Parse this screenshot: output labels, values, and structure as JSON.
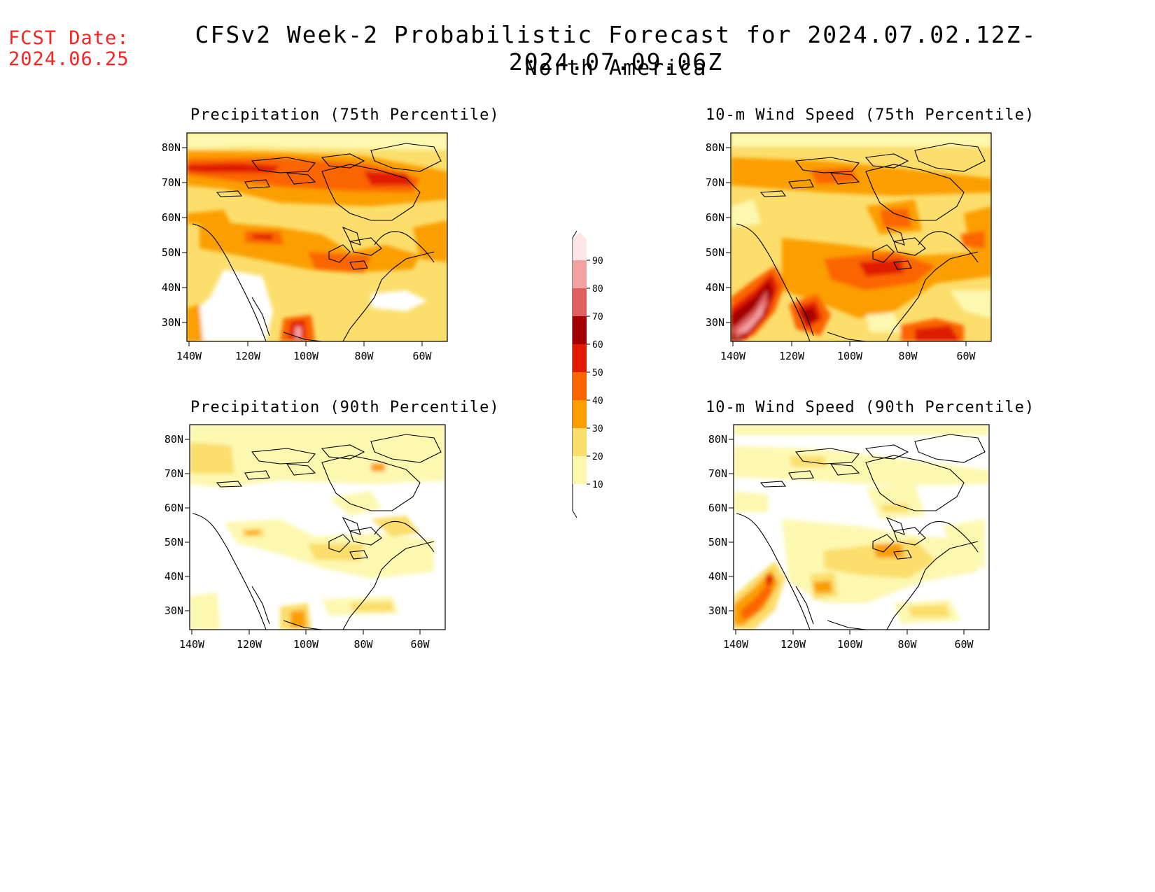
{
  "header": {
    "fcst_label": "FCST Date:",
    "fcst_date": "2024.06.25",
    "title": "CFSv2 Week-2 Probabilistic Forecast for 2024.07.02.12Z-2024.07.09.06Z",
    "region": "North America"
  },
  "axes": {
    "lat_ticks": [
      "80N",
      "70N",
      "60N",
      "50N",
      "40N",
      "30N"
    ],
    "lon_ticks": [
      "140W",
      "120W",
      "100W",
      "80W",
      "60W"
    ]
  },
  "panels": [
    {
      "title": "Precipitation (75th Percentile)"
    },
    {
      "title": "10-m Wind Speed (75th Percentile)"
    },
    {
      "title": "Precipitation (90th Percentile)"
    },
    {
      "title": "10-m Wind Speed (90th Percentile)"
    }
  ],
  "colorbar": {
    "levels": [
      "90",
      "80",
      "70",
      "60",
      "50",
      "40",
      "30",
      "20",
      "10"
    ],
    "colors": [
      "#fde6e6",
      "#f2a2a2",
      "#df6060",
      "#a50000",
      "#e01a00",
      "#fb6500",
      "#fb9e00",
      "#fbde6c",
      "#fdf8b0"
    ]
  }
}
